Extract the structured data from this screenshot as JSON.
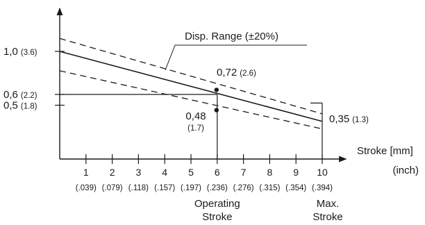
{
  "chart_data": {
    "type": "line",
    "xlabel": "Stroke [mm]",
    "xlabel_unit": "(inch)",
    "x_ticks": [
      1,
      2,
      3,
      4,
      5,
      6,
      7,
      8,
      9,
      10
    ],
    "x_ticks_inch": [
      "(.039)",
      "(.079)",
      "(.118)",
      "(.157)",
      "(.197)",
      "(.236)",
      "(.276)",
      "(.315)",
      "(.354)",
      "(.394)"
    ],
    "xlim": [
      0,
      10.8
    ],
    "ylim": [
      0,
      1.45
    ],
    "y_labels": [
      {
        "value": 1.0,
        "text": "1,0",
        "sub": "(3.6)"
      },
      {
        "value": 0.6,
        "text": "0,6",
        "sub": "(2.2)"
      },
      {
        "value": 0.5,
        "text": "0,5",
        "sub": "(1.8)"
      }
    ],
    "series": [
      {
        "style": "solid",
        "x": [
          0,
          10
        ],
        "y": [
          1.0,
          0.35
        ]
      },
      {
        "style": "dashed",
        "x": [
          0,
          10
        ],
        "y": [
          1.12,
          0.42
        ]
      },
      {
        "style": "dashed",
        "x": [
          0,
          10
        ],
        "y": [
          0.82,
          0.28
        ]
      }
    ],
    "points": [
      {
        "x": 6,
        "y": 0.72,
        "text": "0,72",
        "sub": "(2.6)"
      },
      {
        "x": 6,
        "y": 0.48,
        "text": "0,48",
        "sub": "(1.7)"
      }
    ],
    "end_value": {
      "x": 10,
      "y": 0.35,
      "text": "0,35",
      "sub": "(1.3)"
    },
    "annotation": "Disp. Range (±20%)",
    "markers": [
      {
        "x": 6,
        "text": [
          "Operating",
          "Stroke"
        ]
      },
      {
        "x": 10,
        "text": [
          "Max.",
          "Stroke"
        ]
      }
    ]
  }
}
